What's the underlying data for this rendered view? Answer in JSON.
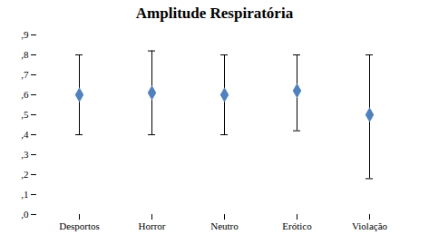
{
  "chart_data": {
    "type": "errorbar",
    "title": "Amplitude Respiratória",
    "categories": [
      "Desportos",
      "Horror",
      "Neutro",
      "Erótico",
      "Violação"
    ],
    "values": [
      0.6,
      0.61,
      0.6,
      0.62,
      0.5
    ],
    "error_upper": [
      0.2,
      0.21,
      0.2,
      0.18,
      0.3
    ],
    "error_lower": [
      0.2,
      0.21,
      0.2,
      0.2,
      0.32
    ],
    "color": "#4F81BD",
    "marker": "diamond",
    "ylim": [
      0.0,
      0.9
    ],
    "yticks": [
      {
        "value": 0.0,
        "label": ",0"
      },
      {
        "value": 0.1,
        "label": ",1"
      },
      {
        "value": 0.2,
        "label": ",2"
      },
      {
        "value": 0.3,
        "label": ",3"
      },
      {
        "value": 0.4,
        "label": ",4"
      },
      {
        "value": 0.5,
        "label": ",5"
      },
      {
        "value": 0.6,
        "label": ",6"
      },
      {
        "value": 0.7,
        "label": ",7"
      },
      {
        "value": 0.8,
        "label": ",8"
      },
      {
        "value": 0.9,
        "label": ",9"
      }
    ],
    "grid": false
  }
}
